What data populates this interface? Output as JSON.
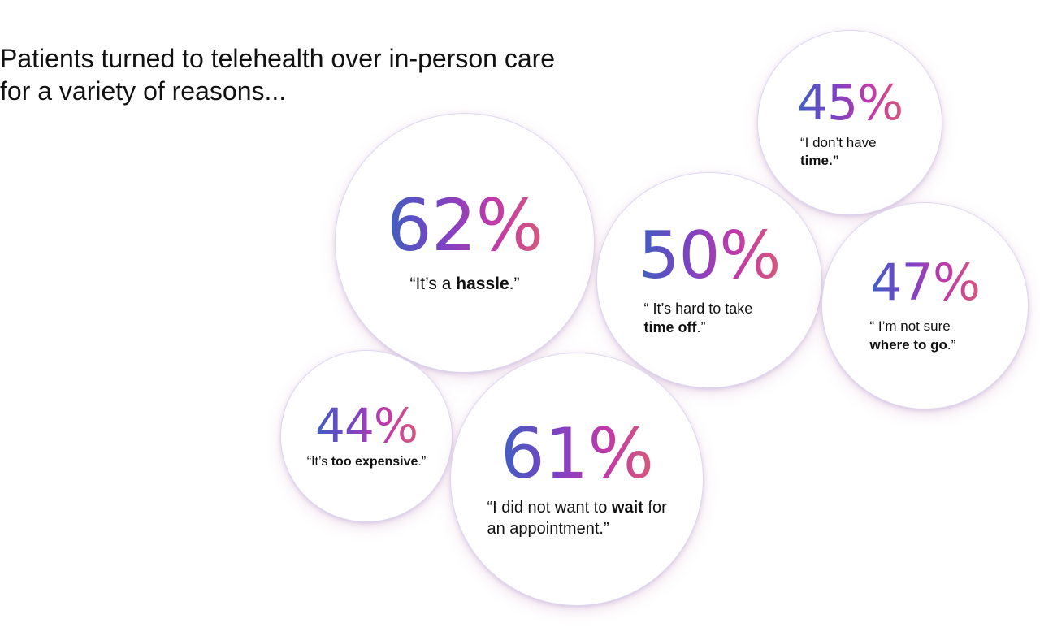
{
  "headline": "Patients turned to telehealth over in-person care for a variety of reasons...",
  "stats": [
    {
      "id": "b62",
      "percent": "62%",
      "value": 62,
      "quote_pre": "“It’s a ",
      "quote_bold": "hassle",
      "quote_post": ".”"
    },
    {
      "id": "b45",
      "percent": "45%",
      "value": 45,
      "quote_pre": "“I don’t have ",
      "quote_bold": "time.”",
      "quote_post": ""
    },
    {
      "id": "b50",
      "percent": "50%",
      "value": 50,
      "quote_pre": "“ It’s hard to take ",
      "quote_bold": "time off",
      "quote_post": ".”"
    },
    {
      "id": "b47",
      "percent": "47%",
      "value": 47,
      "quote_pre": "“ I’m not sure ",
      "quote_bold": "where to go",
      "quote_post": ".”"
    },
    {
      "id": "b44",
      "percent": "44%",
      "value": 44,
      "quote_pre": "“It’s ",
      "quote_bold": "too expensive",
      "quote_post": ".”"
    },
    {
      "id": "b61",
      "percent": "61%",
      "value": 61,
      "quote_pre": "“I did not want to ",
      "quote_bold": "wait",
      "quote_post": " for an appointment.”"
    }
  ],
  "colors": {
    "gradient_start": "#3f5fc0",
    "gradient_mid1": "#7a43c4",
    "gradient_mid2": "#c23aa8",
    "gradient_end": "#d45a7a",
    "text": "#111111",
    "background": "#ffffff"
  }
}
